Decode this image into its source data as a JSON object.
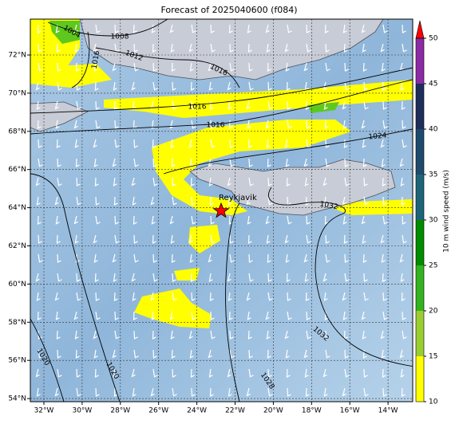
{
  "map": {
    "title": "Forecast of 2025040600 (f084)",
    "lat_labels": [
      "72°N",
      "70°N",
      "68°N",
      "66°N",
      "64°N",
      "62°N",
      "60°N",
      "58°N",
      "56°N",
      "54°N"
    ],
    "lon_labels": [
      "32°W",
      "30°W",
      "28°W",
      "26°W",
      "24°W",
      "22°W",
      "20°W",
      "18°W",
      "16°W",
      "14°W"
    ],
    "colorbar": {
      "label": "10 m wind speed (m/s)",
      "ticks": [
        10,
        15,
        20,
        25,
        30,
        35,
        40,
        45,
        50
      ],
      "colors": [
        "#ffff00",
        "#9acd32",
        "#32b41e",
        "#008c00",
        "#1e6478",
        "#1e4a6e",
        "#1e2d5a",
        "#8c2aa5"
      ],
      "extend_color": "#ff0000"
    },
    "city": "Reykjavik",
    "contour_labels": [
      "1004",
      "1008",
      "1012",
      "1016",
      "1016",
      "1016",
      "1020",
      "1024",
      "1032",
      "1032",
      "1028",
      "1020",
      "1016"
    ]
  }
}
